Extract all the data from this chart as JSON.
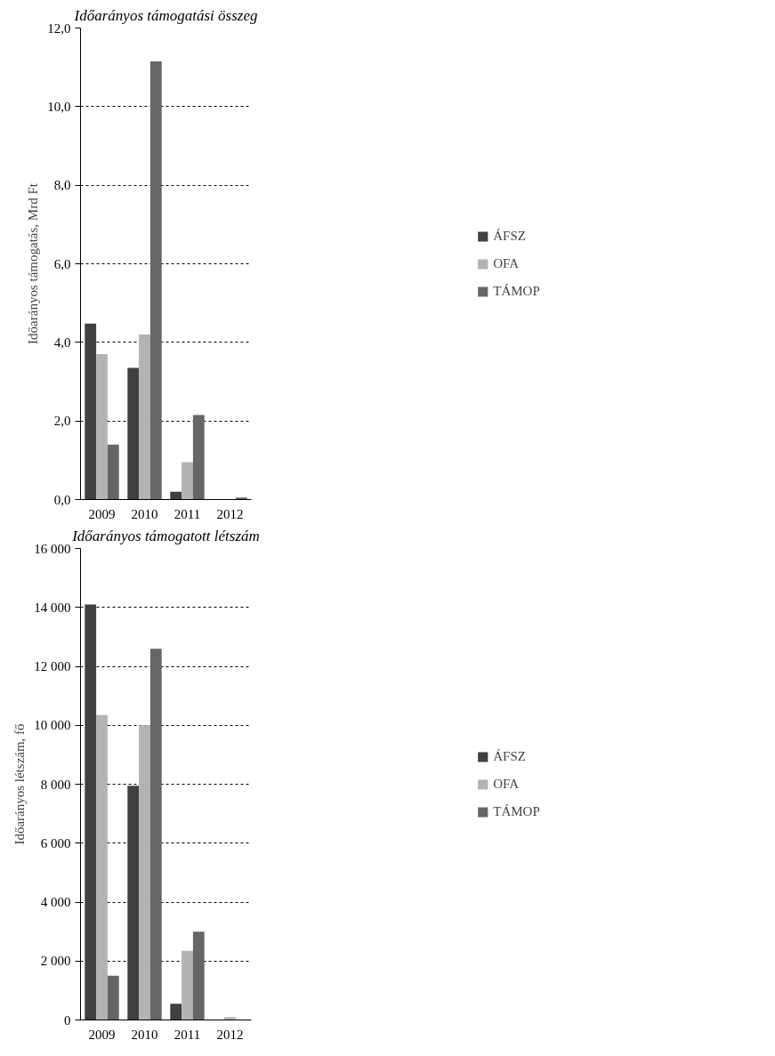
{
  "chart_data": [
    {
      "type": "bar",
      "title": "Időarányos támogatási összeg",
      "ylabel": "Időarányos támogatás, Mrd Ft",
      "categories": [
        "2009",
        "2010",
        "2011",
        "2012"
      ],
      "series": [
        {
          "name": "ÁFSZ",
          "color": "#404040",
          "values": [
            4.48,
            3.35,
            0.2,
            0
          ]
        },
        {
          "name": "OFA",
          "color": "#b3b3b3",
          "values": [
            3.7,
            4.2,
            0.95,
            0
          ]
        },
        {
          "name": "TÁMOP",
          "color": "#666666",
          "values": [
            1.4,
            11.15,
            2.15,
            0.05
          ]
        }
      ],
      "ylim": [
        0,
        12
      ],
      "yticks": [
        {
          "value": 0,
          "label": "0,0"
        },
        {
          "value": 2,
          "label": "2,0"
        },
        {
          "value": 4,
          "label": "4,0"
        },
        {
          "value": 6,
          "label": "6,0"
        },
        {
          "value": 8,
          "label": "8,0"
        },
        {
          "value": 10,
          "label": "10,0"
        },
        {
          "value": 12,
          "label": "12,0"
        }
      ],
      "grid": "y",
      "legend": "right"
    },
    {
      "type": "bar",
      "title": "Időarányos támogatott létszám",
      "ylabel": "Időarányos létszám, fő",
      "categories": [
        "2009",
        "2010",
        "2011",
        "2012"
      ],
      "series": [
        {
          "name": "ÁFSZ",
          "color": "#404040",
          "values": [
            14100,
            7950,
            550,
            0
          ]
        },
        {
          "name": "OFA",
          "color": "#b3b3b3",
          "values": [
            10350,
            10000,
            2350,
            100
          ]
        },
        {
          "name": "TÁMOP",
          "color": "#666666",
          "values": [
            1500,
            12600,
            3000,
            0
          ]
        }
      ],
      "ylim": [
        0,
        16000
      ],
      "yticks": [
        0,
        {
          "value": 2000,
          "label": "2 000"
        },
        {
          "value": 4000,
          "label": "4 000"
        },
        {
          "value": 6000,
          "label": "6 000"
        },
        {
          "value": 8000,
          "label": "8 000"
        },
        {
          "value": 10000,
          "label": "10 000"
        },
        {
          "value": 12000,
          "label": "12 000"
        },
        {
          "value": 14000,
          "label": "14 000"
        },
        {
          "value": 16000,
          "label": "16 000"
        }
      ],
      "grid": "y",
      "legend": "right"
    }
  ]
}
